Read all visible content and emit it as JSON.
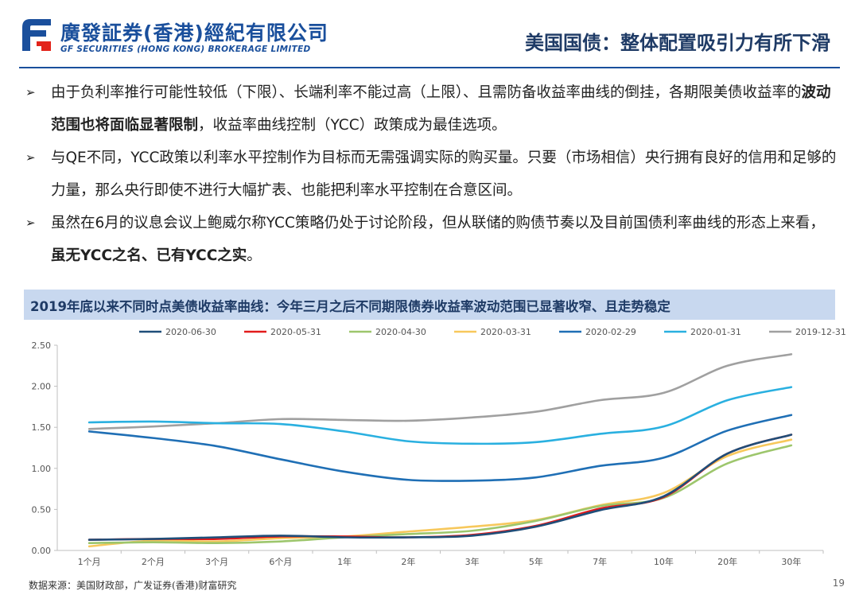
{
  "header": {
    "logo_cn": "廣發証券(香港)經紀有限公司",
    "logo_en": "GF SECURITIES (HONG KONG) BROKERAGE LIMITED",
    "title": "美国国债：整体配置吸引力有所下滑",
    "brand_color": "#1a4f9c"
  },
  "bullets": [
    {
      "before": "由于负利率推行可能性较低（下限）、长端利率不能过高（上限）、且需防备收益率曲线的倒挂，各期限美债收益率的",
      "bold": "波动范围也将面临显著限制",
      "after": "，收益率曲线控制（YCC）政策成为最佳选项。"
    },
    {
      "before": "与QE不同，YCC政策以利率水平控制作为目标而无需强调实际的购买量。只要（市场相信）央行拥有良好的信用和足够的力量，那么央行即使不进行大幅扩表、也能把利率水平控制在合意区间。",
      "bold": "",
      "after": ""
    },
    {
      "before": "虽然在6月的议息会议上鲍威尔称YCC策略仍处于讨论阶段，但从联储的购债节奏以及目前国债利率曲线的形态上来看，",
      "bold": "虽无YCC之名、已有YCC之实",
      "after": "。"
    }
  ],
  "chart_title": "2019年底以来不同时点美债收益率曲线：今年三月之后不同期限债券收益率波动范围已显著收窄、且走势稳定",
  "chart_data": {
    "type": "line",
    "title": "",
    "xlabel": "",
    "ylabel": "",
    "categories": [
      "1个月",
      "2个月",
      "3个月",
      "6个月",
      "1年",
      "2年",
      "3年",
      "5年",
      "7年",
      "10年",
      "20年",
      "30年"
    ],
    "ylim": [
      0,
      2.5
    ],
    "yticks": [
      "0.00",
      "0.50",
      "1.00",
      "1.50",
      "2.00",
      "2.50"
    ],
    "grid": false,
    "legend_position": "top",
    "series": [
      {
        "name": "2020-06-30",
        "color": "#1f4e79",
        "values": [
          0.13,
          0.14,
          0.16,
          0.18,
          0.16,
          0.16,
          0.18,
          0.29,
          0.49,
          0.66,
          1.18,
          1.41
        ]
      },
      {
        "name": "2020-05-31",
        "color": "#e21b1b",
        "values": [
          0.13,
          0.14,
          0.14,
          0.17,
          0.17,
          0.16,
          0.19,
          0.3,
          0.51,
          0.65,
          1.18,
          1.41
        ]
      },
      {
        "name": "2020-04-30",
        "color": "#9dc66c",
        "values": [
          0.09,
          0.1,
          0.09,
          0.11,
          0.16,
          0.2,
          0.24,
          0.36,
          0.54,
          0.64,
          1.06,
          1.28
        ]
      },
      {
        "name": "2020-03-31",
        "color": "#f7c85c",
        "values": [
          0.05,
          0.12,
          0.11,
          0.15,
          0.17,
          0.23,
          0.29,
          0.37,
          0.55,
          0.7,
          1.15,
          1.35
        ]
      },
      {
        "name": "2020-02-29",
        "color": "#1f6fb5",
        "values": [
          1.45,
          1.37,
          1.27,
          1.11,
          0.96,
          0.86,
          0.85,
          0.89,
          1.03,
          1.13,
          1.46,
          1.65
        ]
      },
      {
        "name": "2020-01-31",
        "color": "#2ab0e0",
        "values": [
          1.56,
          1.57,
          1.55,
          1.54,
          1.45,
          1.33,
          1.3,
          1.32,
          1.42,
          1.51,
          1.83,
          1.99
        ]
      },
      {
        "name": "2019-12-31",
        "color": "#a0a0a0",
        "values": [
          1.48,
          1.51,
          1.55,
          1.6,
          1.59,
          1.58,
          1.62,
          1.69,
          1.83,
          1.92,
          2.25,
          2.39
        ]
      }
    ]
  },
  "source": "数据来源：美国财政部，广发证券(香港)财富研究",
  "page_number": "19"
}
